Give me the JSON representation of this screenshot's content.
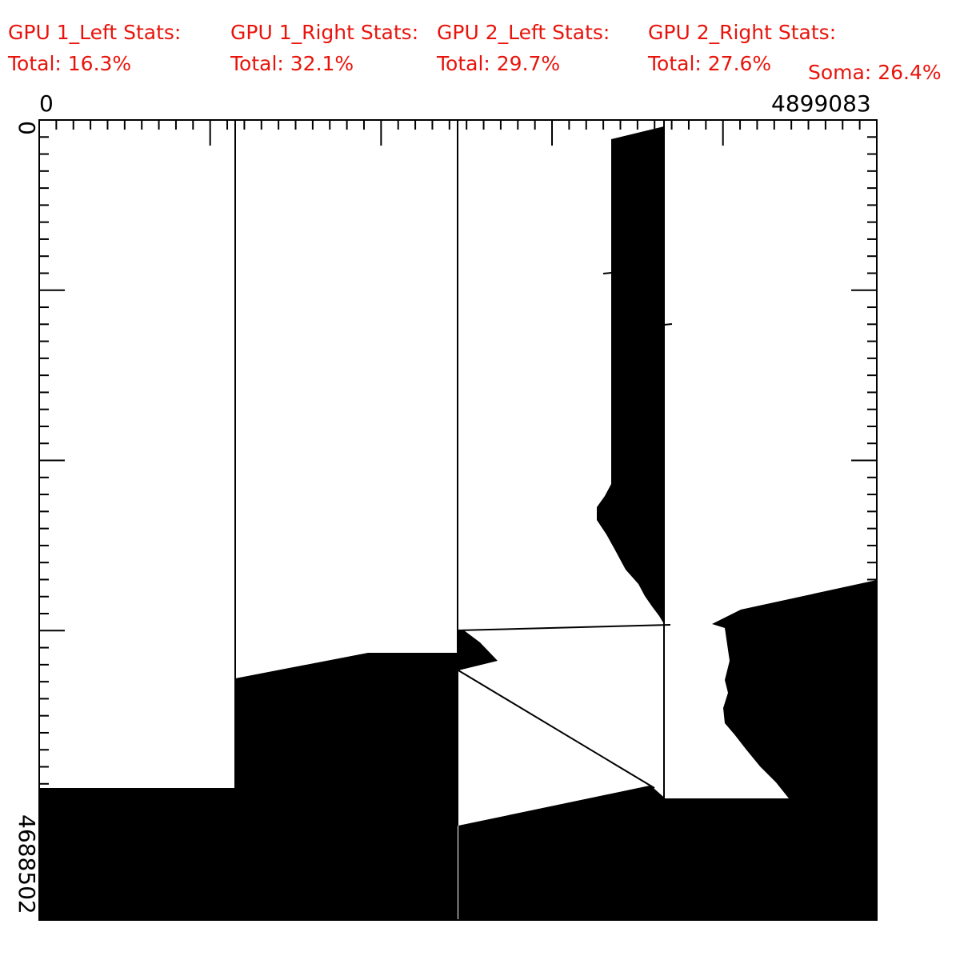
{
  "stats": [
    {
      "title": "GPU 1_Left Stats:",
      "total": "Total: 16.3%"
    },
    {
      "title": "GPU 1_Right Stats:",
      "total": "Total: 32.1%"
    },
    {
      "title": "GPU 2_Left Stats:",
      "total": "Total: 29.7%"
    },
    {
      "title": "GPU 2_Right Stats:",
      "total": "Total: 27.6%"
    }
  ],
  "soma": "Soma: 26.4%",
  "axes": {
    "x_min_label": "0",
    "x_max_label": "4899083",
    "y_min_label": "0",
    "y_max_label": "4688502"
  },
  "colors": {
    "stat_text": "#e8140c",
    "fill": "#000000",
    "background": "#ffffff"
  }
}
